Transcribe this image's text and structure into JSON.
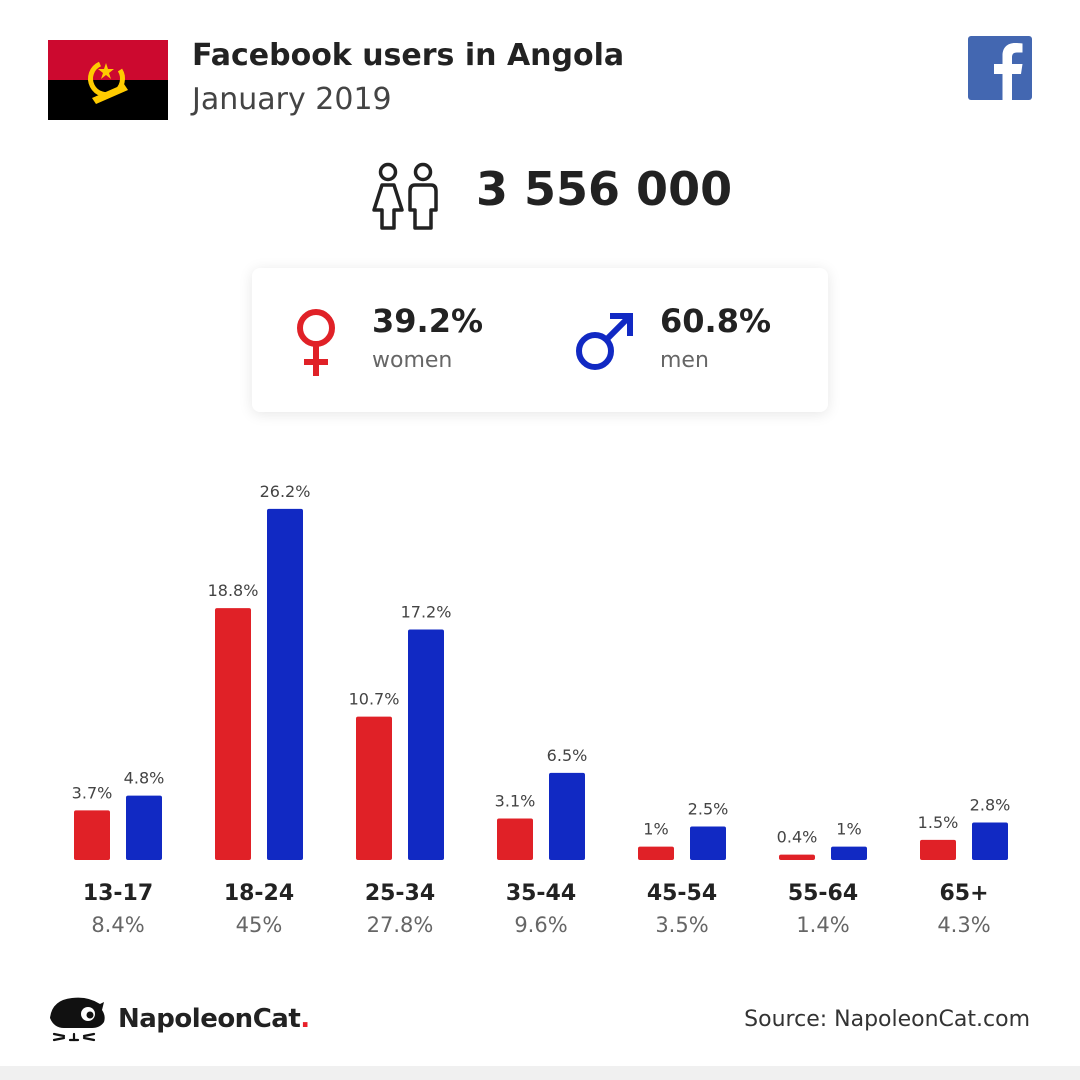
{
  "header": {
    "title": "Facebook users in Angola",
    "subtitle": "January 2019"
  },
  "total": {
    "value": "3 556 000",
    "icon": "people-icon"
  },
  "gender": {
    "women": {
      "pct": "39.2%",
      "label": "women",
      "icon": "female-symbol-icon",
      "color": "#e02127"
    },
    "men": {
      "pct": "60.8%",
      "label": "men",
      "icon": "male-symbol-icon",
      "color": "#1129c3"
    }
  },
  "chart_data": {
    "type": "bar",
    "categories": [
      "13-17",
      "18-24",
      "25-34",
      "35-44",
      "45-54",
      "55-64",
      "65+"
    ],
    "category_totals": [
      "8.4%",
      "45%",
      "27.8%",
      "9.6%",
      "3.5%",
      "1.4%",
      "4.3%"
    ],
    "series": [
      {
        "values": [
          3.7,
          18.8,
          10.7,
          3.1,
          1,
          0.4,
          1.5
        ],
        "labels": [
          "3.7%",
          "18.8%",
          "10.7%",
          "3.1%",
          "1%",
          "0.4%",
          "1.5%"
        ],
        "color": "#e02127"
      },
      {
        "values": [
          4.8,
          26.2,
          17.2,
          6.5,
          2.5,
          1,
          2.8
        ],
        "labels": [
          "4.8%",
          "26.2%",
          "17.2%",
          "6.5%",
          "2.5%",
          "1%",
          "2.8%"
        ],
        "color": "#1129c3"
      }
    ],
    "grid": false,
    "legend": "none"
  },
  "footer": {
    "brand_name": "NapoleonCat",
    "brand_dot": ".",
    "source": "Source: NapoleonCat.com"
  },
  "colors": {
    "facebook": "#4367b1",
    "flag_red": "#cc092f",
    "flag_black": "#000000",
    "flag_emblem": "#ffcb00"
  }
}
